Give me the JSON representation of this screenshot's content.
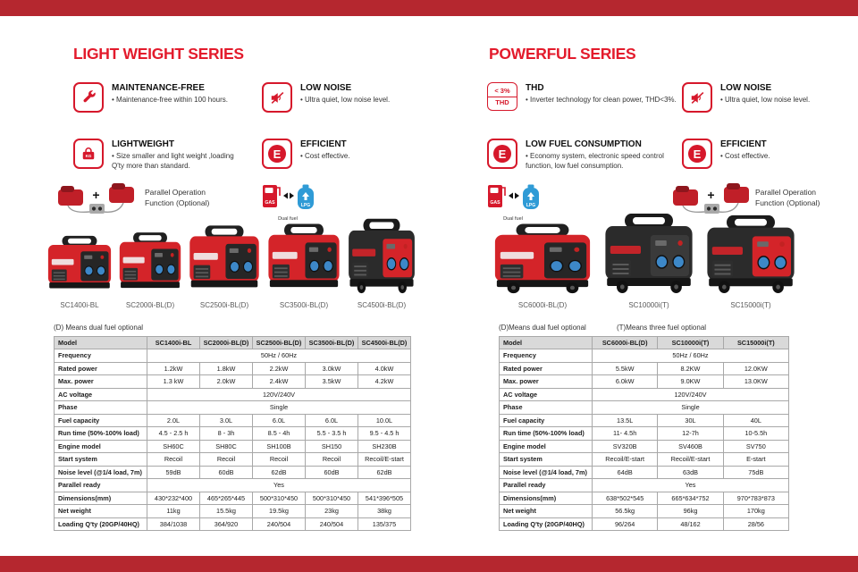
{
  "colors": {
    "band": "#b5272f",
    "accent": "#e31b2c",
    "icon_red": "#d6182b",
    "table_header_bg": "#d9d9d9"
  },
  "icon_texts": {
    "efficiency_letter": "E",
    "gas": "GAS",
    "lpg": "LPG",
    "kg_label": "KG",
    "plus": "+"
  },
  "left": {
    "title": "LIGHT WEIGHT SERIES",
    "features": [
      {
        "icon": "wrench-icon",
        "title": "MAINTENANCE-FREE",
        "desc": "• Maintenance-free within 100 hours."
      },
      {
        "icon": "mute-speaker-icon",
        "title": "LOW NOISE",
        "desc": "• Ultra quiet, low noise level."
      },
      {
        "icon": "kg-weight-icon",
        "title": "LIGHTWEIGHT",
        "desc": "• Size smaller and light weight ,loading\n   Q'ty more than standard."
      },
      {
        "icon": "efficiency-icon",
        "title": "EFFICIENT",
        "desc": "• Cost effective."
      }
    ],
    "parallel_text": "Parallel Operation\nFunction (Optional)",
    "dual_fuel_caption": "Dual fuel",
    "products": [
      {
        "label": "SC1400i-BL",
        "variant": "red",
        "wheels": false
      },
      {
        "label": "SC2000i-BL(D)",
        "variant": "red",
        "wheels": false
      },
      {
        "label": "SC2500i-BL(D)",
        "variant": "red",
        "wheels": false
      },
      {
        "label": "SC3500i-BL(D)",
        "variant": "red",
        "wheels": false
      },
      {
        "label": "SC4500i-BL(D)",
        "variant": "redface",
        "wheels": true
      }
    ],
    "note": "(D) Means dual fuel optional",
    "table": {
      "header_label": "Model",
      "models": [
        "SC1400i-BL",
        "SC2000i-BL(D)",
        "SC2500i-BL(D)",
        "SC3500i-BL(D)",
        "SC4500i-BL(D)"
      ],
      "rows": [
        {
          "label": "Frequency",
          "span": "50Hz / 60Hz"
        },
        {
          "label": "Rated power",
          "cells": [
            "1.2kW",
            "1.8kW",
            "2.2kW",
            "3.0kW",
            "4.0kW"
          ]
        },
        {
          "label": "Max. power",
          "cells": [
            "1.3 kW",
            "2.0kW",
            "2.4kW",
            "3.5kW",
            "4.2kW"
          ]
        },
        {
          "label": "AC voltage",
          "span": "120V/240V"
        },
        {
          "label": "Phase",
          "span": "Single"
        },
        {
          "label": "Fuel capacity",
          "cells": [
            "2.0L",
            "3.0L",
            "6.0L",
            "6.0L",
            "10.0L"
          ]
        },
        {
          "label": "Run time (50%-100% load)",
          "cells": [
            "4.5 - 2.5 h",
            "8 - 3h",
            "8.5 - 4h",
            "5.5 - 3.5 h",
            "9.5 - 4.5 h"
          ]
        },
        {
          "label": "Engine model",
          "cells": [
            "SH60C",
            "SH80C",
            "SH100B",
            "SH150",
            "SH230B"
          ]
        },
        {
          "label": "Start system",
          "cells": [
            "Recoil",
            "Recoil",
            "Recoil",
            "Recoil",
            "Recoil/E-start"
          ]
        },
        {
          "label": "Noise level (@1/4 load, 7m)",
          "cells": [
            "59dB",
            "60dB",
            "62dB",
            "60dB",
            "62dB"
          ]
        },
        {
          "label": "Parallel ready",
          "span": "Yes"
        },
        {
          "label": "Dimensions(mm)",
          "cells": [
            "430*232*400",
            "465*265*445",
            "500*310*450",
            "500*310*450",
            "541*396*505"
          ]
        },
        {
          "label": "Net weight",
          "cells": [
            "11kg",
            "15.5kg",
            "19.5kg",
            "23kg",
            "38kg"
          ]
        },
        {
          "label": "Loading Q'ty (20GP/40HQ)",
          "cells": [
            "384/1038",
            "364/920",
            "240/504",
            "240/504",
            "135/375"
          ]
        }
      ]
    }
  },
  "right": {
    "title": "POWERFUL SERIES",
    "features": [
      {
        "icon": "thd-icon",
        "icon_text_top": "< 3%",
        "icon_text_bottom": "THD",
        "title": "THD",
        "desc": "• Inverter technology for clean power, THD<3%."
      },
      {
        "icon": "mute-speaker-icon",
        "title": "LOW NOISE",
        "desc": "• Ultra quiet, low noise level."
      },
      {
        "icon": "efficiency-icon",
        "title": "LOW FUEL CONSUMPTION",
        "desc": "• Economy system, electronic speed control\n   function, low fuel consumption."
      },
      {
        "icon": "efficiency-icon",
        "title": "EFFICIENT",
        "desc": "• Cost effective."
      }
    ],
    "parallel_text": "Parallel Operation\nFunction (Optional)",
    "dual_fuel_caption": "Dual fuel",
    "notes": [
      "(D)Means dual fuel optional",
      "(T)Means three fuel optional"
    ],
    "products": [
      {
        "label": "SC6000i-BL(D)",
        "variant": "red",
        "wheels": true
      },
      {
        "label": "SC10000i(T)",
        "variant": "dark",
        "wheels": true
      },
      {
        "label": "SC15000i(T)",
        "variant": "redface",
        "wheels": true
      }
    ],
    "table": {
      "header_label": "Model",
      "models": [
        "SC6000i-BL(D)",
        "SC10000i(T)",
        "SC15000i(T)"
      ],
      "rows": [
        {
          "label": "Frequency",
          "span": "50Hz / 60Hz"
        },
        {
          "label": "Rated power",
          "cells": [
            "5.5kW",
            "8.2KW",
            "12.0KW"
          ]
        },
        {
          "label": "Max. power",
          "cells": [
            "6.0kW",
            "9.0KW",
            "13.0KW"
          ]
        },
        {
          "label": "AC voltage",
          "span": "120V/240V"
        },
        {
          "label": "Phase",
          "span": "Single"
        },
        {
          "label": "Fuel capacity",
          "cells": [
            "13.5L",
            "30L",
            "40L"
          ]
        },
        {
          "label": "Run time (50%-100% load)",
          "cells": [
            "11- 4.5h",
            "12-7h",
            "10-5.5h"
          ]
        },
        {
          "label": "Engine model",
          "cells": [
            "SV320B",
            "SV460B",
            "SV750"
          ]
        },
        {
          "label": "Start system",
          "cells": [
            "Recoil/E-start",
            "Recoil/E-start",
            "E-start"
          ]
        },
        {
          "label": "Noise level (@1/4 load, 7m)",
          "cells": [
            "64dB",
            "63dB",
            "75dB"
          ]
        },
        {
          "label": "Parallel ready",
          "span": "Yes"
        },
        {
          "label": "Dimensions(mm)",
          "cells": [
            "638*502*545",
            "665*634*752",
            "970*783*873"
          ]
        },
        {
          "label": "Net weight",
          "cells": [
            "56.5kg",
            "96kg",
            "170kg"
          ]
        },
        {
          "label": "Loading Q'ty (20GP/40HQ)",
          "cells": [
            "96/264",
            "48/162",
            "28/56"
          ]
        }
      ]
    }
  }
}
